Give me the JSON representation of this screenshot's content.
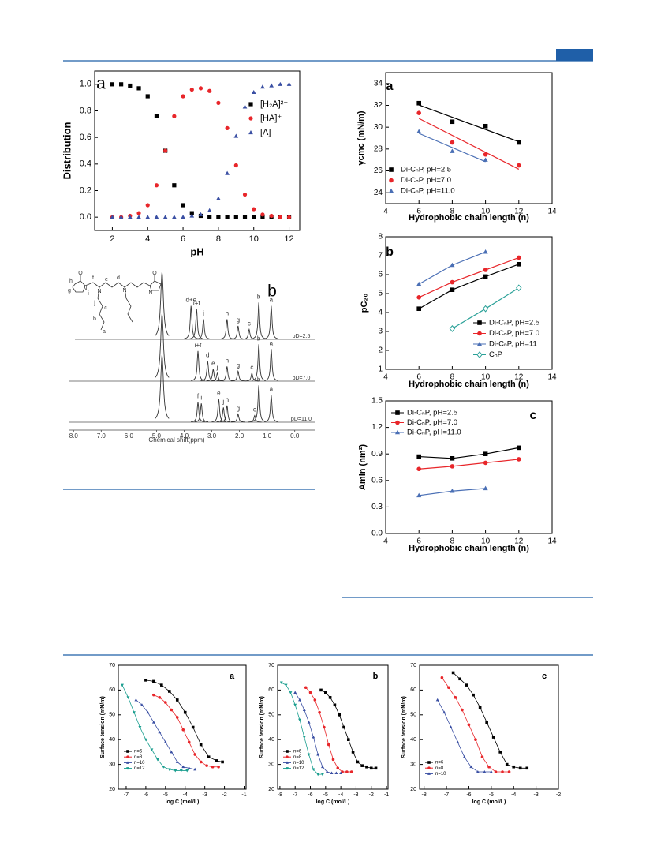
{
  "chart_data": [
    {
      "type": "scatter",
      "label": "a",
      "xlabel": "pH",
      "ylabel": "Distribution",
      "xlim": [
        1,
        12.6
      ],
      "ylim": [
        -0.1,
        1.1
      ],
      "xticks": [
        2,
        4,
        6,
        8,
        10,
        12
      ],
      "yticks": [
        {
          "value": 0,
          "label": "0.0"
        },
        0.2,
        0.4,
        0.6,
        0.8,
        {
          "value": 1,
          "label": "1.0"
        }
      ],
      "x": [
        2,
        2.5,
        3,
        3.5,
        4,
        4.5,
        5,
        5.5,
        6,
        6.5,
        7,
        7.5,
        8,
        8.5,
        9,
        9.5,
        10,
        10.5,
        11,
        11.5,
        12
      ],
      "series": [
        {
          "name": "[H₂A]²⁺",
          "color": "#000000",
          "marker": "square",
          "values": [
            1.0,
            1.0,
            0.99,
            0.97,
            0.91,
            0.76,
            0.5,
            0.24,
            0.09,
            0.03,
            0.01,
            0.0,
            0.0,
            0.0,
            0.0,
            0.0,
            0.0,
            0.0,
            0.0,
            0.0,
            0.0
          ]
        },
        {
          "name": "[HA]⁺",
          "color": "#e8262a",
          "marker": "circle",
          "values": [
            0.0,
            0.0,
            0.01,
            0.03,
            0.09,
            0.24,
            0.5,
            0.76,
            0.91,
            0.96,
            0.97,
            0.95,
            0.86,
            0.67,
            0.39,
            0.17,
            0.06,
            0.02,
            0.01,
            0.0,
            0.0
          ]
        },
        {
          "name": "[A]",
          "color": "#3a4fa3",
          "marker": "triangle",
          "values": [
            0.0,
            0.0,
            0.0,
            0.0,
            0.0,
            0.0,
            0.0,
            0.0,
            0.0,
            0.01,
            0.02,
            0.05,
            0.14,
            0.33,
            0.61,
            0.83,
            0.94,
            0.98,
            0.99,
            1.0,
            1.0
          ]
        }
      ]
    },
    {
      "type": "scatter_fit",
      "label": "a",
      "xlabel": "Hydrophobic chain length (n)",
      "ylabel": "γcmc (mN/m)",
      "xlim": [
        4,
        14
      ],
      "ylim": [
        23,
        35
      ],
      "xticks": [
        4,
        6,
        8,
        10,
        12,
        14
      ],
      "yticks": [
        24,
        26,
        28,
        30,
        32,
        34
      ],
      "series": [
        {
          "name": "Di-CₙP, pH=2.5",
          "color": "#000000",
          "marker": "square",
          "x": [
            6,
            8,
            10,
            12
          ],
          "values": [
            32.2,
            30.5,
            30.1,
            28.6
          ]
        },
        {
          "name": "Di-CₙP, pH=7.0",
          "color": "#e8262a",
          "marker": "circle",
          "x": [
            6,
            8,
            10,
            12
          ],
          "values": [
            31.3,
            28.6,
            27.5,
            26.5
          ]
        },
        {
          "name": "Di-CₙP, pH=11.0",
          "color": "#4a6fb5",
          "marker": "triangle",
          "x": [
            6,
            8,
            10
          ],
          "values": [
            29.6,
            27.8,
            27.0
          ]
        }
      ]
    },
    {
      "type": "line",
      "label": "b",
      "xlabel": "Hydrophobic chain length (n)",
      "ylabel": "pC₂₀",
      "xlim": [
        4,
        14
      ],
      "ylim": [
        1,
        8
      ],
      "xticks": [
        4,
        6,
        8,
        10,
        12,
        14
      ],
      "yticks": [
        1,
        2,
        3,
        4,
        5,
        6,
        7,
        8
      ],
      "series": [
        {
          "name": "Di-CₙP, pH=2.5",
          "color": "#000000",
          "marker": "square",
          "x": [
            6,
            8,
            10,
            12
          ],
          "values": [
            4.2,
            5.2,
            5.9,
            6.55
          ]
        },
        {
          "name": "Di-CₙP, pH=7.0",
          "color": "#e8262a",
          "marker": "circle",
          "x": [
            6,
            8,
            10,
            12
          ],
          "values": [
            4.8,
            5.6,
            6.25,
            6.9
          ]
        },
        {
          "name": "Di-CₙP, pH=11",
          "color": "#4a6fb5",
          "marker": "triangle",
          "x": [
            6,
            8,
            10
          ],
          "values": [
            5.5,
            6.5,
            7.2
          ]
        },
        {
          "name": "CₙP",
          "color": "#2aa198",
          "marker": "diamond-open",
          "x": [
            8,
            10,
            12
          ],
          "values": [
            3.15,
            4.2,
            5.3
          ]
        }
      ]
    },
    {
      "type": "line",
      "label": "c",
      "xlabel": "Hydrophobic chain length (n)",
      "ylabel": "Amin (nm²)",
      "xlim": [
        4,
        14
      ],
      "ylim": [
        0,
        1.5
      ],
      "xticks": [
        4,
        6,
        8,
        10,
        12,
        14
      ],
      "yticks": [
        {
          "value": 0,
          "label": "0.0"
        },
        0.3,
        0.6,
        0.9,
        1.2,
        1.5
      ],
      "series": [
        {
          "name": "Di-CₙP, pH=2.5",
          "color": "#000000",
          "marker": "square",
          "x": [
            6,
            8,
            10,
            12
          ],
          "values": [
            0.87,
            0.85,
            0.9,
            0.97
          ]
        },
        {
          "name": "Di-CₙP, pH=7.0",
          "color": "#e8262a",
          "marker": "circle",
          "x": [
            6,
            8,
            10,
            12
          ],
          "values": [
            0.73,
            0.76,
            0.8,
            0.84
          ]
        },
        {
          "name": "Di-CₙP, pH=11.0",
          "color": "#4a6fb5",
          "marker": "triangle",
          "x": [
            6,
            8,
            10
          ],
          "values": [
            0.43,
            0.48,
            0.51
          ]
        }
      ]
    },
    {
      "type": "line",
      "label": "a",
      "xlabel": "log C (mol/L)",
      "ylabel": "Surface tension (mN/m)",
      "xlim": [
        -7.4,
        -0.9
      ],
      "ylim": [
        20,
        70
      ],
      "xticks": [
        -7,
        -6,
        -5,
        -4,
        -3,
        -2,
        -1
      ],
      "yticks": [
        20,
        30,
        40,
        50,
        60,
        70
      ],
      "series": [
        {
          "name": "n=6",
          "color": "#000000",
          "marker": "square",
          "x": [
            -6,
            -5.6,
            -5.2,
            -4.8,
            -4.4,
            -4.0,
            -3.6,
            -3.2,
            -2.8,
            -2.4,
            -2.1
          ],
          "values": [
            64,
            63.5,
            62,
            59.5,
            56,
            51,
            45,
            38,
            33,
            31.5,
            31
          ]
        },
        {
          "name": "n=8",
          "color": "#e8262a",
          "marker": "circle",
          "x": [
            -5.6,
            -5.3,
            -5.0,
            -4.7,
            -4.4,
            -4.1,
            -3.8,
            -3.5,
            -3.2,
            -2.9,
            -2.6,
            -2.3
          ],
          "values": [
            58,
            57,
            55,
            52,
            49,
            44,
            39,
            34,
            31,
            29.5,
            29,
            29
          ]
        },
        {
          "name": "n=10",
          "color": "#3a4fa3",
          "marker": "triangle",
          "x": [
            -6.5,
            -6.2,
            -5.9,
            -5.6,
            -5.3,
            -5.0,
            -4.7,
            -4.4,
            -4.1,
            -3.8,
            -3.5
          ],
          "values": [
            56,
            54,
            51,
            47,
            43,
            39,
            35,
            31,
            29,
            28.5,
            28
          ]
        },
        {
          "name": "n=12",
          "color": "#1a9e8f",
          "marker": "triangle-down",
          "x": [
            -7.2,
            -6.9,
            -6.6,
            -6.3,
            -6.0,
            -5.7,
            -5.4,
            -5.1,
            -4.8,
            -4.5,
            -4.2,
            -3.9
          ],
          "values": [
            62,
            57,
            51,
            45,
            40,
            36,
            32,
            29,
            28,
            27.5,
            27.5,
            27.5
          ]
        }
      ]
    },
    {
      "type": "line",
      "label": "b",
      "xlabel": "log C (mol/L)",
      "ylabel": "Surface tension (mN/m)",
      "xlim": [
        -8.15,
        -0.9
      ],
      "ylim": [
        20,
        70
      ],
      "xticks": [
        -8,
        -7,
        -6,
        -5,
        -4,
        -3,
        -2,
        -1
      ],
      "yticks": [
        20,
        30,
        40,
        50,
        60,
        70
      ],
      "series": [
        {
          "name": "n=6",
          "color": "#000000",
          "marker": "square",
          "x": [
            -5.3,
            -5.0,
            -4.7,
            -4.4,
            -4.1,
            -3.8,
            -3.5,
            -3.2,
            -2.9,
            -2.6,
            -2.3,
            -2.0,
            -1.7
          ],
          "values": [
            60,
            59,
            57,
            54,
            50,
            45,
            40,
            35,
            31,
            29.5,
            29,
            28.5,
            28.5
          ]
        },
        {
          "name": "n=8",
          "color": "#e8262a",
          "marker": "circle",
          "x": [
            -6.3,
            -6.0,
            -5.7,
            -5.4,
            -5.1,
            -4.8,
            -4.5,
            -4.2,
            -3.9,
            -3.6,
            -3.3
          ],
          "values": [
            61,
            59,
            56,
            51,
            45,
            38,
            32,
            28.5,
            27,
            27,
            27
          ]
        },
        {
          "name": "n=10",
          "color": "#3a4fa3",
          "marker": "triangle",
          "x": [
            -7.0,
            -6.7,
            -6.4,
            -6.1,
            -5.8,
            -5.5,
            -5.2,
            -4.9,
            -4.6,
            -4.3,
            -4.0
          ],
          "values": [
            59,
            56,
            52,
            47,
            41,
            34,
            29,
            27,
            26.5,
            26.5,
            26.5
          ]
        },
        {
          "name": "n=12",
          "color": "#1a9e8f",
          "marker": "triangle-down",
          "x": [
            -7.9,
            -7.6,
            -7.3,
            -7.0,
            -6.7,
            -6.4,
            -6.1,
            -5.8,
            -5.5,
            -5.2
          ],
          "values": [
            63,
            62,
            59,
            54,
            48,
            41,
            34,
            28,
            26,
            26
          ]
        }
      ]
    },
    {
      "type": "line",
      "label": "c",
      "xlabel": "log C (mol/L)",
      "ylabel": "Surface tension (mN/m)",
      "xlim": [
        -8.2,
        -2
      ],
      "ylim": [
        20,
        70
      ],
      "xticks": [
        -8,
        -7,
        -6,
        -5,
        -4,
        -3,
        -2
      ],
      "yticks": [
        20,
        30,
        40,
        50,
        60,
        70
      ],
      "series": [
        {
          "name": "n=6",
          "color": "#000000",
          "marker": "square",
          "x": [
            -6.7,
            -6.4,
            -6.1,
            -5.8,
            -5.5,
            -5.2,
            -4.9,
            -4.6,
            -4.3,
            -4.0,
            -3.7,
            -3.4
          ],
          "values": [
            67,
            64.5,
            62,
            58,
            53,
            47,
            41,
            35,
            30,
            29,
            28.5,
            28.5
          ]
        },
        {
          "name": "n=8",
          "color": "#e8262a",
          "marker": "circle",
          "x": [
            -7.2,
            -6.9,
            -6.6,
            -6.3,
            -6.0,
            -5.7,
            -5.4,
            -5.1,
            -4.8,
            -4.5,
            -4.2
          ],
          "values": [
            65,
            61,
            57,
            52,
            46,
            40,
            33,
            29,
            27,
            27,
            27
          ]
        },
        {
          "name": "n=10",
          "color": "#3a4fa3",
          "marker": "triangle",
          "x": [
            -7.4,
            -7.1,
            -6.8,
            -6.5,
            -6.2,
            -5.9,
            -5.6,
            -5.3,
            -5.0
          ],
          "values": [
            56,
            51,
            45,
            39,
            33,
            29,
            27,
            27,
            27
          ]
        }
      ]
    },
    {
      "type": "spectrum",
      "label": "b",
      "xlabel": "Chemical shift(ppm)",
      "xlim": [
        8.15,
        -0.75
      ],
      "xticks": [
        {
          "value": 8,
          "label": "8.0"
        },
        {
          "value": 7,
          "label": "7.0"
        },
        {
          "value": 6,
          "label": "6.0"
        },
        {
          "value": 5,
          "label": "5.0"
        },
        {
          "value": 4,
          "label": "4.0"
        },
        {
          "value": 3,
          "label": "3.0"
        },
        {
          "value": 2,
          "label": "2.0"
        },
        {
          "value": 1,
          "label": "1.0"
        },
        {
          "value": 0,
          "label": "0.0"
        }
      ],
      "structure_labels": [
        "O",
        "N",
        "N",
        "N",
        "O",
        "N",
        "h",
        "g",
        "i",
        "f",
        "e",
        "d",
        "j",
        "c",
        "b",
        "a"
      ],
      "traces": [
        {
          "name": "pD=2.5",
          "peaks": [
            {
              "label": null,
              "x": 4.8,
              "intensity": 100
            },
            {
              "label": "d+e",
              "x": 3.75,
              "intensity": 50
            },
            {
              "label": "i+f",
              "x": 3.55,
              "intensity": 45
            },
            {
              "label": "j",
              "x": 3.3,
              "intensity": 30
            },
            {
              "label": "h",
              "x": 2.45,
              "intensity": 30
            },
            {
              "label": "g",
              "x": 2.05,
              "intensity": 20
            },
            {
              "label": "c",
              "x": 1.65,
              "intensity": 15
            },
            {
              "label": "b",
              "x": 1.3,
              "intensity": 55
            },
            {
              "label": "a",
              "x": 0.85,
              "intensity": 50
            }
          ]
        },
        {
          "name": "pD=7.0",
          "peaks": [
            {
              "label": null,
              "x": 4.8,
              "intensity": 100
            },
            {
              "label": "i+f",
              "x": 3.5,
              "intensity": 45
            },
            {
              "label": "d",
              "x": 3.15,
              "intensity": 30
            },
            {
              "label": "e",
              "x": 2.95,
              "intensity": 18
            },
            {
              "label": "j",
              "x": 2.8,
              "intensity": 12
            },
            {
              "label": "h",
              "x": 2.45,
              "intensity": 22
            },
            {
              "label": "g",
              "x": 2.05,
              "intensity": 15
            },
            {
              "label": "c",
              "x": 1.55,
              "intensity": 12
            },
            {
              "label": "b",
              "x": 1.3,
              "intensity": 55
            },
            {
              "label": "a",
              "x": 0.85,
              "intensity": 48
            }
          ]
        },
        {
          "name": "pD=11.0",
          "peaks": [
            {
              "label": null,
              "x": 4.8,
              "intensity": 100
            },
            {
              "label": "f",
              "x": 3.5,
              "intensity": 30
            },
            {
              "label": "i",
              "x": 3.38,
              "intensity": 28
            },
            {
              "label": "e",
              "x": 2.75,
              "intensity": 35
            },
            {
              "label": "j",
              "x": 2.58,
              "intensity": 22
            },
            {
              "label": "h",
              "x": 2.45,
              "intensity": 25
            },
            {
              "label": "g",
              "x": 2.05,
              "intensity": 12
            },
            {
              "label": "c",
              "x": 1.45,
              "intensity": 10
            },
            {
              "label": "b",
              "x": 1.3,
              "intensity": 55
            },
            {
              "label": "a",
              "x": 0.85,
              "intensity": 40
            }
          ]
        }
      ]
    }
  ]
}
